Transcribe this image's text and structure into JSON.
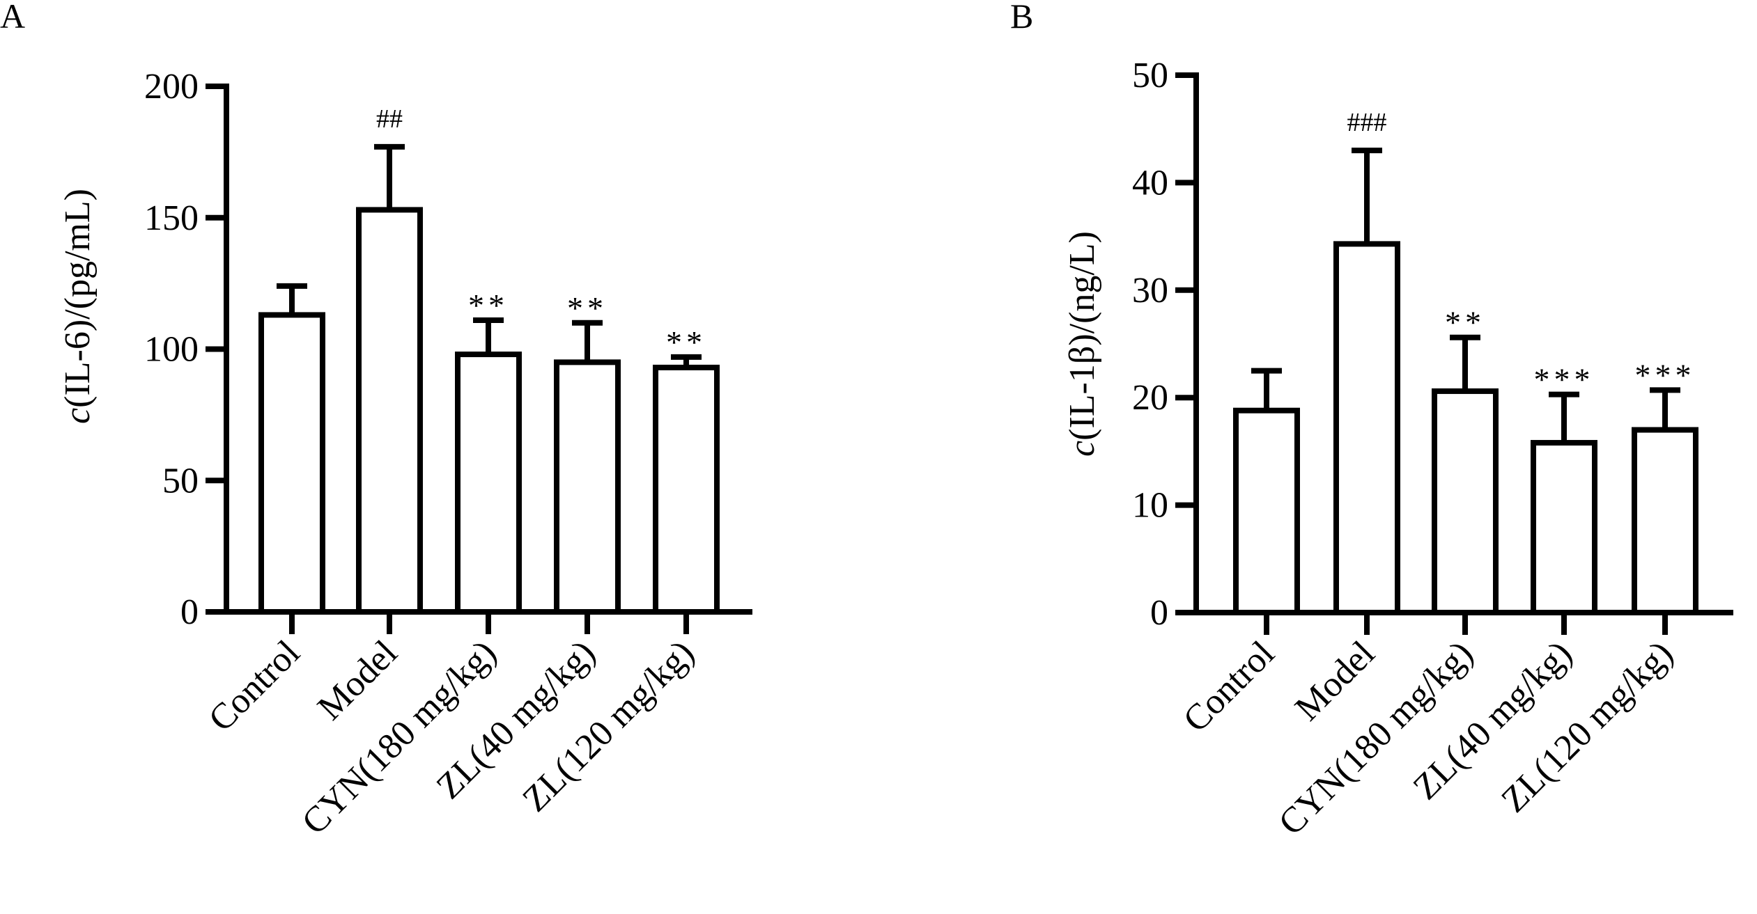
{
  "chart_data": [
    {
      "type": "bar",
      "panel_label": "A",
      "title": "",
      "xlabel": "",
      "ylabel_italic": "c",
      "ylabel": "(IL-6)/(pg/mL)",
      "ylim": [
        0,
        200
      ],
      "yticks": [
        0,
        50,
        100,
        150,
        200
      ],
      "grid": false,
      "categories": [
        "Control",
        "Model",
        "CYN(180 mg/kg)",
        "ZL(40 mg/kg)",
        "ZL(120 mg/kg)"
      ],
      "values": [
        113,
        153,
        98,
        95,
        93
      ],
      "error_upper": [
        124,
        177,
        111,
        110,
        97
      ],
      "annotations": [
        "",
        "##",
        "**",
        "**",
        "**"
      ]
    },
    {
      "type": "bar",
      "panel_label": "B",
      "title": "",
      "xlabel": "",
      "ylabel_italic": "c",
      "ylabel": "(IL-1β)/(ng/L)",
      "ylim": [
        0,
        50
      ],
      "yticks": [
        0,
        10,
        20,
        30,
        40,
        50
      ],
      "grid": false,
      "categories": [
        "Control",
        "Model",
        "CYN(180 mg/kg)",
        "ZL(40 mg/kg)",
        "ZL(120 mg/kg)"
      ],
      "values": [
        18.8,
        34.3,
        20.6,
        15.8,
        17.0
      ],
      "error_upper": [
        22.5,
        43.0,
        25.6,
        20.3,
        20.7
      ],
      "annotations": [
        "",
        "###",
        "**",
        "***",
        "***"
      ]
    }
  ]
}
